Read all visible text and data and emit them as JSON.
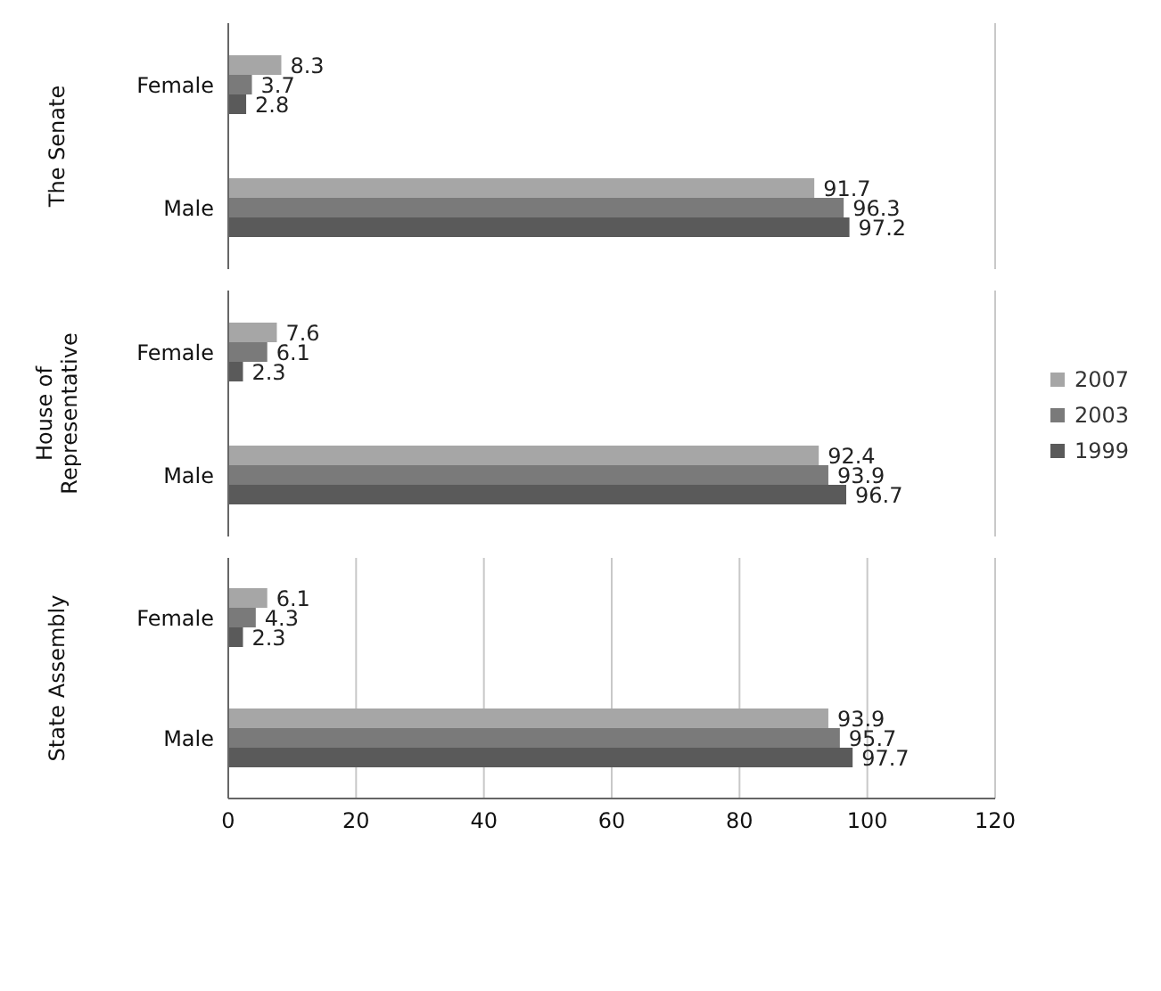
{
  "chart_data": [
    {
      "type": "bar",
      "orientation": "horizontal",
      "ylabel": "The Senate",
      "categories": [
        "Female",
        "Male"
      ],
      "series": [
        {
          "color": "#a6a6a6",
          "values": [
            8.3,
            91.7
          ]
        },
        {
          "color": "#7a7a7a",
          "values": [
            3.7,
            96.3
          ]
        },
        {
          "color": "#5a5a5a",
          "values": [
            2.8,
            97.2
          ]
        }
      ],
      "xlim": [
        0,
        120
      ],
      "xticks": [
        0,
        20,
        40,
        60,
        80,
        100,
        120
      ],
      "grid": "x",
      "data_labels": true,
      "tick_labels": "y",
      "legend": false
    },
    {
      "type": "bar",
      "orientation": "horizontal",
      "ylabel": "House of Representative",
      "categories": [
        "Female",
        "Male"
      ],
      "series": [
        {
          "name": "2007",
          "color": "#a6a6a6",
          "values": [
            7.6,
            92.4
          ]
        },
        {
          "name": "2003",
          "color": "#7a7a7a",
          "values": [
            6.1,
            93.9
          ]
        },
        {
          "name": "1999",
          "color": "#5a5a5a",
          "values": [
            2.3,
            96.7
          ]
        }
      ],
      "xlim": [
        0,
        120
      ],
      "xticks": [
        0,
        20,
        40,
        60,
        80,
        100,
        120
      ],
      "grid": "x",
      "data_labels": true,
      "tick_labels": "y",
      "legend": "right"
    },
    {
      "type": "bar",
      "orientation": "horizontal",
      "ylabel": "State Assembly",
      "categories": [
        "Female",
        "Male"
      ],
      "series": [
        {
          "color": "#a6a6a6",
          "values": [
            6.1,
            93.9
          ]
        },
        {
          "color": "#7a7a7a",
          "values": [
            4.3,
            95.7
          ]
        },
        {
          "color": "#5a5a5a",
          "values": [
            2.3,
            97.7
          ]
        }
      ],
      "xlim": [
        0,
        120
      ],
      "xticks": [
        0,
        20,
        40,
        60,
        80,
        100,
        120
      ],
      "grid": "x",
      "data_labels": true,
      "legend": false
    }
  ]
}
